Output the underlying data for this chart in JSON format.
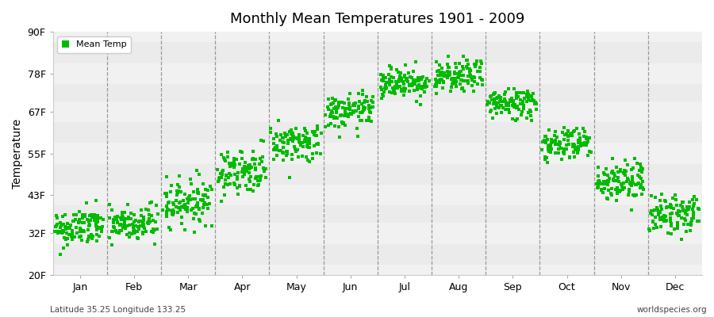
{
  "title": "Monthly Mean Temperatures 1901 - 2009",
  "ylabel": "Temperature",
  "yticks": [
    20,
    32,
    43,
    55,
    67,
    78,
    90
  ],
  "ytick_labels": [
    "20F",
    "32F",
    "43F",
    "55F",
    "67F",
    "78F",
    "90F"
  ],
  "ylim": [
    20,
    90
  ],
  "months": [
    "Jan",
    "Feb",
    "Mar",
    "Apr",
    "May",
    "Jun",
    "Jul",
    "Aug",
    "Sep",
    "Oct",
    "Nov",
    "Dec"
  ],
  "month_means": [
    33.5,
    34.5,
    41.0,
    50.0,
    58.0,
    67.0,
    75.5,
    77.0,
    69.5,
    58.0,
    47.0,
    37.5
  ],
  "month_stds": [
    2.8,
    2.8,
    3.2,
    3.2,
    2.8,
    2.5,
    2.3,
    2.3,
    2.3,
    2.5,
    3.0,
    2.8
  ],
  "n_points": 109,
  "dot_color": "#00bb00",
  "dot_size": 6,
  "plot_bg_color": "#ebebeb",
  "band_color": "#f5f5f5",
  "legend_label": "Mean Temp",
  "footnote_left": "Latitude 35.25 Longitude 133.25",
  "footnote_right": "worldspecies.org",
  "vline_color": "#999999",
  "vline_style": "--",
  "hband_color": "#ffffff"
}
